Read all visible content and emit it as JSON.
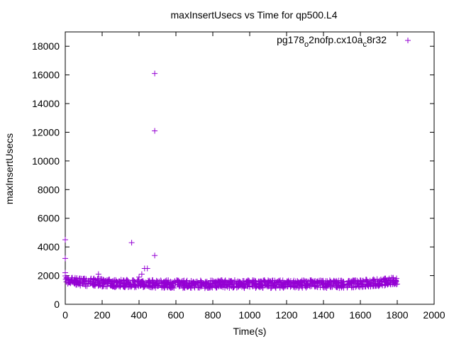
{
  "chart_data": {
    "type": "scatter",
    "title": "maxInsertUsecs vs Time for qp500.L4",
    "xlabel": "Time(s)",
    "ylabel": "maxInsertUsecs",
    "xlim": [
      0,
      2000
    ],
    "ylim": [
      0,
      19000
    ],
    "xticks": [
      0,
      200,
      400,
      600,
      800,
      1000,
      1200,
      1400,
      1600,
      1800,
      2000
    ],
    "yticks": [
      0,
      2000,
      4000,
      6000,
      8000,
      10000,
      12000,
      14000,
      16000,
      18000
    ],
    "grid": false,
    "legend_position": "top-right",
    "marker": "plus",
    "color": "#9400d3",
    "series": [
      {
        "name": "pg178_o2nofp.cx10a_c8r32",
        "legend_parts": [
          "pg178",
          "o",
          "2nofp.cx10a",
          "c",
          "8r32"
        ],
        "outliers": [
          [
            0,
            4500
          ],
          [
            0,
            3200
          ],
          [
            0,
            2200
          ],
          [
            180,
            2100
          ],
          [
            360,
            4300
          ],
          [
            400,
            1900
          ],
          [
            415,
            2100
          ],
          [
            430,
            2500
          ],
          [
            445,
            2500
          ],
          [
            485,
            16100
          ],
          [
            485,
            12100
          ],
          [
            485,
            3400
          ]
        ],
        "band_x": [
          0,
          20,
          40,
          60,
          80,
          100,
          120,
          140,
          160,
          180,
          200,
          220,
          240,
          260,
          280,
          300,
          320,
          340,
          360,
          380,
          400,
          420,
          440,
          460,
          480,
          500,
          520,
          540,
          560,
          580,
          600,
          620,
          640,
          660,
          680,
          700,
          720,
          740,
          760,
          780,
          800,
          820,
          840,
          860,
          880,
          900,
          920,
          940,
          960,
          980,
          1000,
          1020,
          1040,
          1060,
          1080,
          1100,
          1120,
          1140,
          1160,
          1180,
          1200,
          1220,
          1240,
          1260,
          1280,
          1300,
          1320,
          1340,
          1360,
          1380,
          1400,
          1420,
          1440,
          1460,
          1480,
          1500,
          1520,
          1540,
          1560,
          1580,
          1600,
          1620,
          1640,
          1660,
          1680,
          1700,
          1720,
          1740,
          1760,
          1780,
          1800
        ],
        "band_y": [
          1750,
          1650,
          1620,
          1600,
          1580,
          1550,
          1520,
          1530,
          1560,
          1540,
          1500,
          1480,
          1470,
          1450,
          1480,
          1460,
          1450,
          1440,
          1460,
          1450,
          1440,
          1430,
          1450,
          1440,
          1420,
          1400,
          1420,
          1410,
          1400,
          1410,
          1420,
          1410,
          1400,
          1410,
          1400,
          1420,
          1410,
          1400,
          1390,
          1400,
          1410,
          1400,
          1420,
          1410,
          1400,
          1410,
          1420,
          1400,
          1410,
          1400,
          1420,
          1410,
          1400,
          1410,
          1420,
          1400,
          1410,
          1400,
          1410,
          1400,
          1410,
          1420,
          1400,
          1410,
          1400,
          1410,
          1420,
          1410,
          1400,
          1410,
          1420,
          1410,
          1400,
          1420,
          1410,
          1400,
          1410,
          1420,
          1430,
          1440,
          1450,
          1460,
          1470,
          1480,
          1500,
          1520,
          1540,
          1560,
          1580,
          1590,
          1580
        ]
      }
    ]
  }
}
